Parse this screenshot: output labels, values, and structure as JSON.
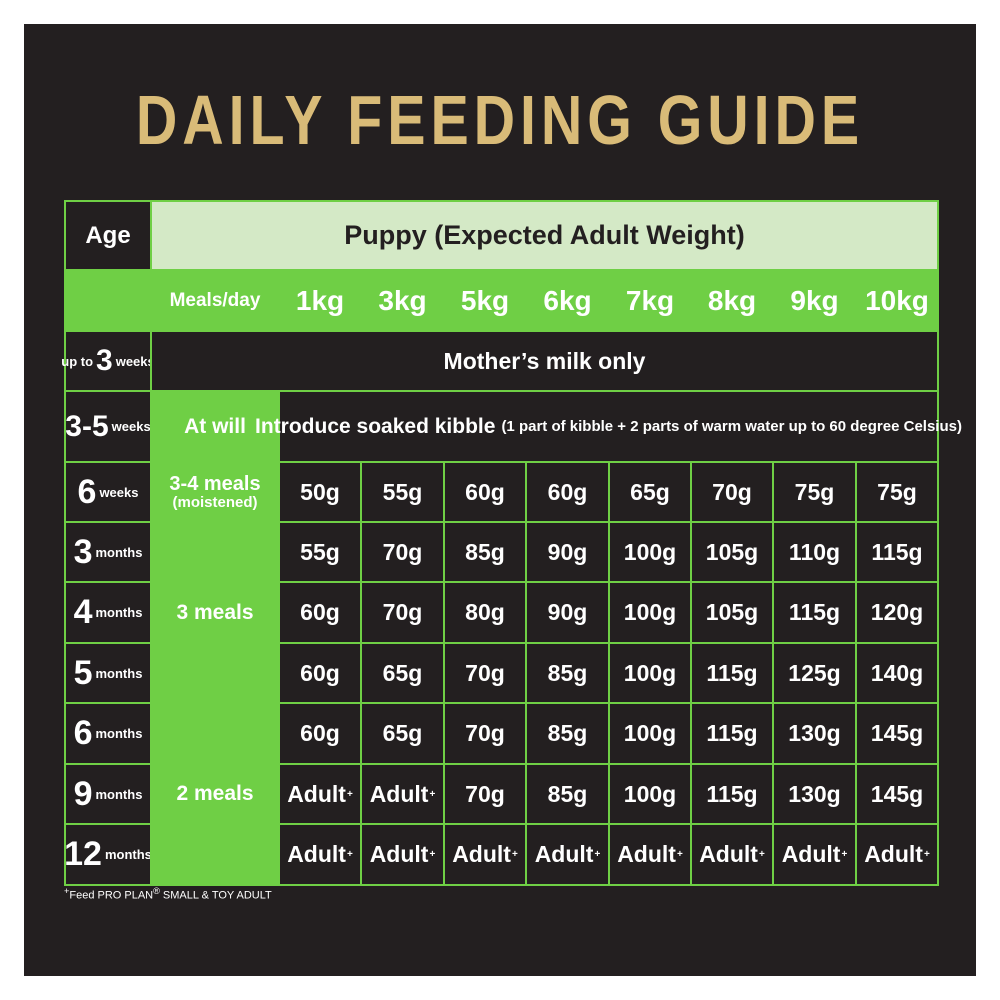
{
  "title": "DAILY FEEDING GUIDE",
  "header": {
    "age_label": "Age",
    "puppy_label": "Puppy (Expected Adult Weight)",
    "meals_per_day_label": "Meals/day",
    "weights": [
      "1kg",
      "3kg",
      "5kg",
      "6kg",
      "7kg",
      "8kg",
      "9kg",
      "10kg"
    ]
  },
  "rows": {
    "r0": {
      "age_prefix": "up to",
      "age_num": "3",
      "age_unit": "weeks",
      "span_text": "Mother’s milk only"
    },
    "r1": {
      "age_num": "3-5",
      "age_unit": "weeks",
      "meals": "At will",
      "span_main": "Introduce soaked kibble",
      "span_note": "(1 part of kibble + 2 parts of warm water up to 60 degree Celsius)"
    },
    "r2": {
      "age_num": "6",
      "age_unit": "weeks",
      "meals": "3-4 meals",
      "meals_note": "(moistened)",
      "values": [
        "50g",
        "55g",
        "60g",
        "60g",
        "65g",
        "70g",
        "75g",
        "75g"
      ]
    },
    "r3": {
      "age_num": "3",
      "age_unit": "months",
      "values": [
        "55g",
        "70g",
        "85g",
        "90g",
        "100g",
        "105g",
        "110g",
        "115g"
      ]
    },
    "r4": {
      "age_num": "4",
      "age_unit": "months",
      "values": [
        "60g",
        "70g",
        "80g",
        "90g",
        "100g",
        "105g",
        "115g",
        "120g"
      ]
    },
    "r5": {
      "age_num": "5",
      "age_unit": "months",
      "values": [
        "60g",
        "65g",
        "70g",
        "85g",
        "100g",
        "115g",
        "125g",
        "140g"
      ]
    },
    "r6": {
      "age_num": "6",
      "age_unit": "months",
      "values": [
        "60g",
        "65g",
        "70g",
        "85g",
        "100g",
        "115g",
        "130g",
        "145g"
      ]
    },
    "r7": {
      "age_num": "9",
      "age_unit": "months",
      "values": [
        "Adult",
        "Adult",
        "70g",
        "85g",
        "100g",
        "115g",
        "130g",
        "145g"
      ]
    },
    "r8": {
      "age_num": "12",
      "age_unit": "months",
      "values": [
        "Adult",
        "Adult",
        "Adult",
        "Adult",
        "Adult",
        "Adult",
        "Adult",
        "Adult"
      ]
    }
  },
  "meal_groups": {
    "three_meals": "3 meals",
    "two_meals": "2 meals"
  },
  "adult_marker": "+",
  "footnote": {
    "marker": "+",
    "text": "Feed PRO PLAN",
    "reg": "®",
    "text2": " SMALL & TOY ADULT"
  },
  "colors": {
    "background": "#231f20",
    "green": "#6fcf45",
    "light_green": "#d4e9c6",
    "gold": "#d9bb78"
  }
}
